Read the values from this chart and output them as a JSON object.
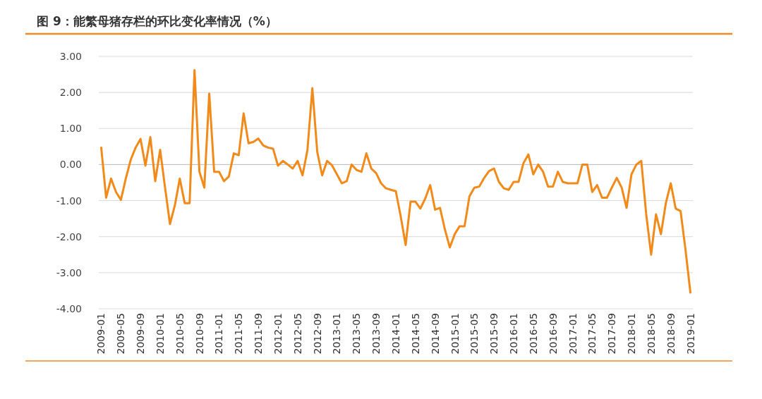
{
  "chart_data": {
    "type": "line",
    "title": "图 9：能繁母猪存栏的环比变化率情况（%）",
    "categories": [
      "2009-01",
      null,
      null,
      null,
      "2009-05",
      null,
      null,
      null,
      "2009-09",
      null,
      null,
      null,
      "2010-01",
      null,
      null,
      null,
      "2010-05",
      null,
      null,
      null,
      "2010-09",
      null,
      null,
      null,
      "2011-01",
      null,
      null,
      null,
      "2011-05",
      null,
      null,
      null,
      "2011-09",
      null,
      null,
      null,
      "2012-01",
      null,
      null,
      null,
      "2012-05",
      null,
      null,
      null,
      "2012-09",
      null,
      null,
      null,
      "2013-01",
      null,
      null,
      null,
      "2013-05",
      null,
      null,
      null,
      "2013-09",
      null,
      null,
      null,
      "2014-01",
      null,
      null,
      null,
      "2014-05",
      null,
      null,
      null,
      "2014-09",
      null,
      null,
      null,
      "2015-01",
      null,
      null,
      null,
      "2015-05",
      null,
      null,
      null,
      "2015-09",
      null,
      null,
      null,
      "2016-01",
      null,
      null,
      null,
      "2016-05",
      null,
      null,
      null,
      "2016-09",
      null,
      null,
      null,
      "2017-01",
      null,
      null,
      null,
      "2017-05",
      null,
      null,
      null,
      "2017-09",
      null,
      null,
      null,
      "2018-01",
      null,
      null,
      null,
      "2018-05",
      null,
      null,
      null,
      "2018-09",
      null,
      null,
      null,
      "2019-01"
    ],
    "series": [
      {
        "color": "#f28a1a",
        "values": [
          0.47,
          -0.92,
          -0.39,
          -0.76,
          -0.98,
          -0.39,
          0.13,
          0.47,
          0.71,
          -0.03,
          0.76,
          -0.46,
          0.41,
          -0.64,
          -1.65,
          -1.13,
          -0.39,
          -1.07,
          -1.07,
          2.62,
          -0.2,
          -0.64,
          1.97,
          -0.2,
          -0.2,
          -0.46,
          -0.33,
          0.31,
          0.26,
          1.42,
          0.59,
          0.63,
          0.72,
          0.53,
          0.47,
          0.44,
          -0.03,
          0.1,
          0,
          -0.11,
          0.1,
          -0.3,
          0.4,
          2.12,
          0.35,
          -0.3,
          0.1,
          -0.02,
          -0.27,
          -0.52,
          -0.46,
          0,
          -0.15,
          -0.2,
          0.31,
          -0.11,
          -0.24,
          -0.52,
          -0.66,
          -0.7,
          -0.74,
          -1.44,
          -2.23,
          -1.03,
          -1.03,
          -1.22,
          -0.94,
          -0.57,
          -1.25,
          -1.2,
          -1.8,
          -2.3,
          -1.93,
          -1.71,
          -1.71,
          -0.88,
          -0.64,
          -0.61,
          -0.37,
          -0.18,
          -0.11,
          -0.48,
          -0.66,
          -0.7,
          -0.48,
          -0.48,
          0.04,
          0.28,
          -0.27,
          0,
          -0.2,
          -0.61,
          -0.61,
          -0.2,
          -0.48,
          -0.52,
          -0.52,
          -0.52,
          0,
          0,
          -0.76,
          -0.57,
          -0.92,
          -0.92,
          -0.64,
          -0.37,
          -0.64,
          -1.2,
          -0.27,
          0,
          0.1,
          -1.38,
          -2.5,
          -1.38,
          -1.93,
          -1.07,
          -0.52,
          -1.22,
          -1.29,
          -2.36,
          -3.55
        ]
      }
    ],
    "ylim": [
      -4,
      3
    ],
    "yticks": [
      {
        "value": 3,
        "label": "3.00"
      },
      {
        "value": 2,
        "label": "2.00"
      },
      {
        "value": 1,
        "label": "1.00"
      },
      {
        "value": 0,
        "label": "0.00"
      },
      {
        "value": -1,
        "label": "-1.00"
      },
      {
        "value": -2,
        "label": "-2.00"
      },
      {
        "value": -3,
        "label": "-3.00"
      },
      {
        "value": -4,
        "label": "-4.00"
      }
    ],
    "grid": "y",
    "marker": "none",
    "line_style": "solid"
  }
}
